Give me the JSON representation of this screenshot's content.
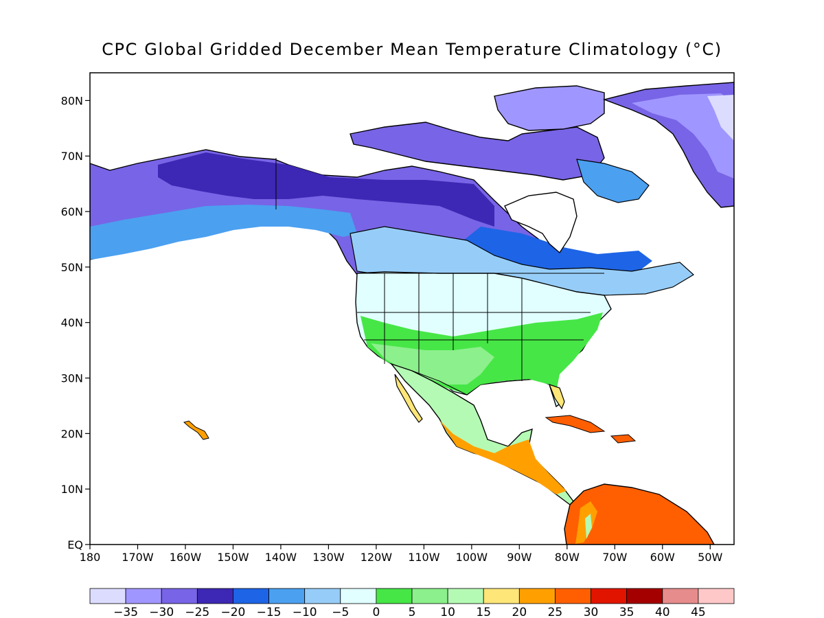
{
  "map": {
    "title": "CPC Global Gridded December Mean Temperature Climatology (°C)",
    "lat_labels": [
      "EQ",
      "10N",
      "20N",
      "30N",
      "40N",
      "50N",
      "60N",
      "70N",
      "80N"
    ],
    "lon_labels": [
      "180",
      "170W",
      "160W",
      "150W",
      "140W",
      "130W",
      "120W",
      "110W",
      "100W",
      "90W",
      "80W",
      "70W",
      "60W",
      "50W"
    ],
    "extent": {
      "lon_min": -180,
      "lon_max": -45,
      "lat_min": 0,
      "lat_max": 85
    }
  },
  "colorbar": {
    "labels": [
      "−35",
      "−30",
      "−25",
      "−20",
      "−15",
      "−10",
      "−5",
      "0",
      "5",
      "10",
      "15",
      "20",
      "25",
      "30",
      "35",
      "40",
      "45"
    ],
    "colors": [
      "#dcdcff",
      "#a096ff",
      "#7864e6",
      "#3c28b4",
      "#1e64e6",
      "#4ba0f0",
      "#96cdf8",
      "#e1ffff",
      "#46e646",
      "#8cf08c",
      "#b4fab4",
      "#ffe678",
      "#ffa000",
      "#ff5f00",
      "#e11400",
      "#a50000",
      "#e68c8c",
      "#ffc8c8"
    ]
  },
  "colors": {
    "land_outline": "#000000",
    "frame": "#000000",
    "background": "#ffffff"
  }
}
